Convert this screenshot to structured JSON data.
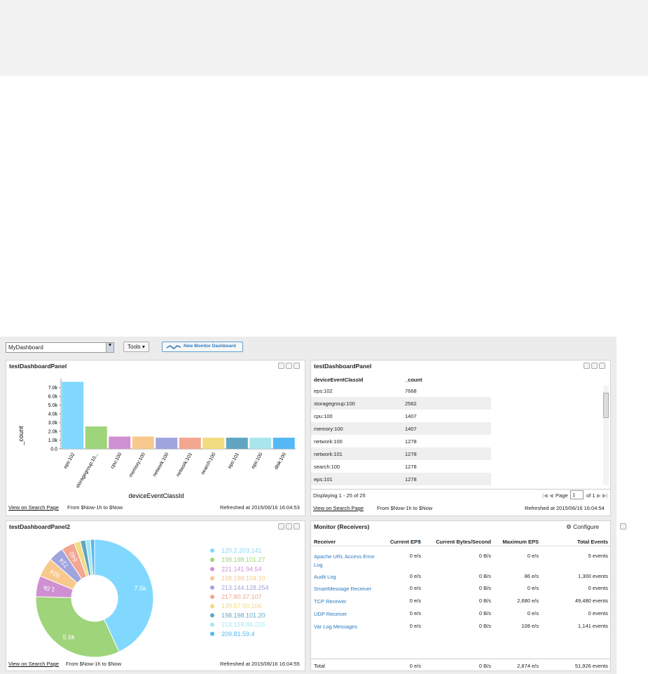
{
  "toolbar": {
    "dashboard": "MyDashboard",
    "tools": "Tools",
    "new_monitor": "New Monitor Dashboard"
  },
  "bar_panel": {
    "title": "testDashboardPanel",
    "chart": {
      "type": "bar",
      "y_label": "_count",
      "x_label": "deviceEventClassId",
      "categories": [
        "eps:102",
        "storagegroup:10...",
        "cpu:100",
        "memory:100",
        "network:100",
        "network:101",
        "search:100",
        "eps:101",
        "eps:100",
        "disk:100"
      ],
      "values": [
        7668,
        2562,
        1407,
        1407,
        1278,
        1278,
        1278,
        1278,
        1278,
        1278
      ],
      "colors": [
        "#80d8fe",
        "#9ed47a",
        "#cf90d2",
        "#f8c98c",
        "#a0a4de",
        "#f3a690",
        "#f2dc80",
        "#60a6c2",
        "#a8e6ee",
        "#55b8f4"
      ],
      "ylim": [
        0,
        7700
      ],
      "yticks": [
        {
          "value": 0,
          "label": "0.0"
        },
        {
          "value": 1000,
          "label": "1.0k"
        },
        {
          "value": 2000,
          "label": "2.0k"
        },
        {
          "value": 3000,
          "label": "3.0k"
        },
        {
          "value": 4000,
          "label": "4.0k"
        },
        {
          "value": 5000,
          "label": "5.0k"
        },
        {
          "value": 6000,
          "label": "6.0k"
        },
        {
          "value": 7000,
          "label": "7.0k"
        }
      ]
    },
    "footer": {
      "link": "View on Search Page",
      "range": "From $Now-1h to $Now",
      "refreshed_label": "Refreshed at",
      "refreshed": "2015/06/16 16:04:53"
    }
  },
  "table_panel": {
    "title": "testDashboardPanel",
    "columns": [
      "deviceEventClassId",
      "_count"
    ],
    "rows": [
      [
        "eps:102",
        7668
      ],
      [
        "storagegroup:100",
        2562
      ],
      [
        "cpu:100",
        1407
      ],
      [
        "memory:100",
        1407
      ],
      [
        "network:100",
        1278
      ],
      [
        "network:101",
        1278
      ],
      [
        "search:100",
        1278
      ],
      [
        "eps:101",
        1278
      ]
    ],
    "displaying": "Displaying 1 - 25 of 25",
    "page_label": "Page",
    "page": 1,
    "page_of": "of 1",
    "footer": {
      "link": "View on Search Page",
      "range": "From $Now-1h to $Now",
      "refreshed_label": "Refreshed at",
      "refreshed": "2015/06/16 16:04:54"
    }
  },
  "pie_panel": {
    "title": "testDashboardPanel2",
    "chart": {
      "type": "pie",
      "categories": [
        "120.2.203.141",
        "198.198.101.27",
        "221.141.94.54",
        "198.198.104.10",
        "213.144.128.254",
        "217.80.37.107",
        "139.87.90.106",
        "198.198.101.20",
        "218.159.86.226",
        "209.81.59.4"
      ],
      "values": [
        7500,
        5600,
        1000,
        924,
        724,
        640,
        300,
        250,
        230,
        200
      ],
      "value_labels": [
        "7.5k",
        "5.6k",
        "1.0k",
        "924",
        "724",
        "640",
        null,
        null,
        null,
        null
      ],
      "colors": [
        "#80d8fe",
        "#9ed47a",
        "#cf90d2",
        "#f8c98c",
        "#a0a4de",
        "#f3a690",
        "#f2dc80",
        "#60a6c2",
        "#a8e6ee",
        "#55b8f4"
      ]
    },
    "footer": {
      "link": "View on Search Page",
      "range": "From $Now-1h to $Now",
      "refreshed_label": "Refreshed at",
      "refreshed": "2015/06/16 16:04:55"
    }
  },
  "monitor_panel": {
    "title": "Monitor (Receivers)",
    "configure": "Configure",
    "columns": [
      "Receiver",
      "Current EPS",
      "Current Bytes/Second",
      "Maximum EPS",
      "Total Events"
    ],
    "rows": [
      [
        "Apache URL Access Error Log",
        "0 e/s",
        "0 B/s",
        "0 e/s",
        "5 events"
      ],
      [
        "Audit Log",
        "0 e/s",
        "0 B/s",
        "86 e/s",
        "1,300 events"
      ],
      [
        "SmartMessage Receiver",
        "0 e/s",
        "0 B/s",
        "0 e/s",
        "0 events"
      ],
      [
        "TCP Receiver",
        "0 e/s",
        "0 B/s",
        "2,680 e/s",
        "49,480 events"
      ],
      [
        "UDP Receiver",
        "0 e/s",
        "0 B/s",
        "0 e/s",
        "0 events"
      ],
      [
        "Var Log Messages",
        "0 e/s",
        "0 B/s",
        "108 e/s",
        "1,141 events"
      ]
    ],
    "total": [
      "Total",
      "0 e/s",
      "0 B/s",
      "2,874 e/s",
      "51,926 events"
    ]
  }
}
